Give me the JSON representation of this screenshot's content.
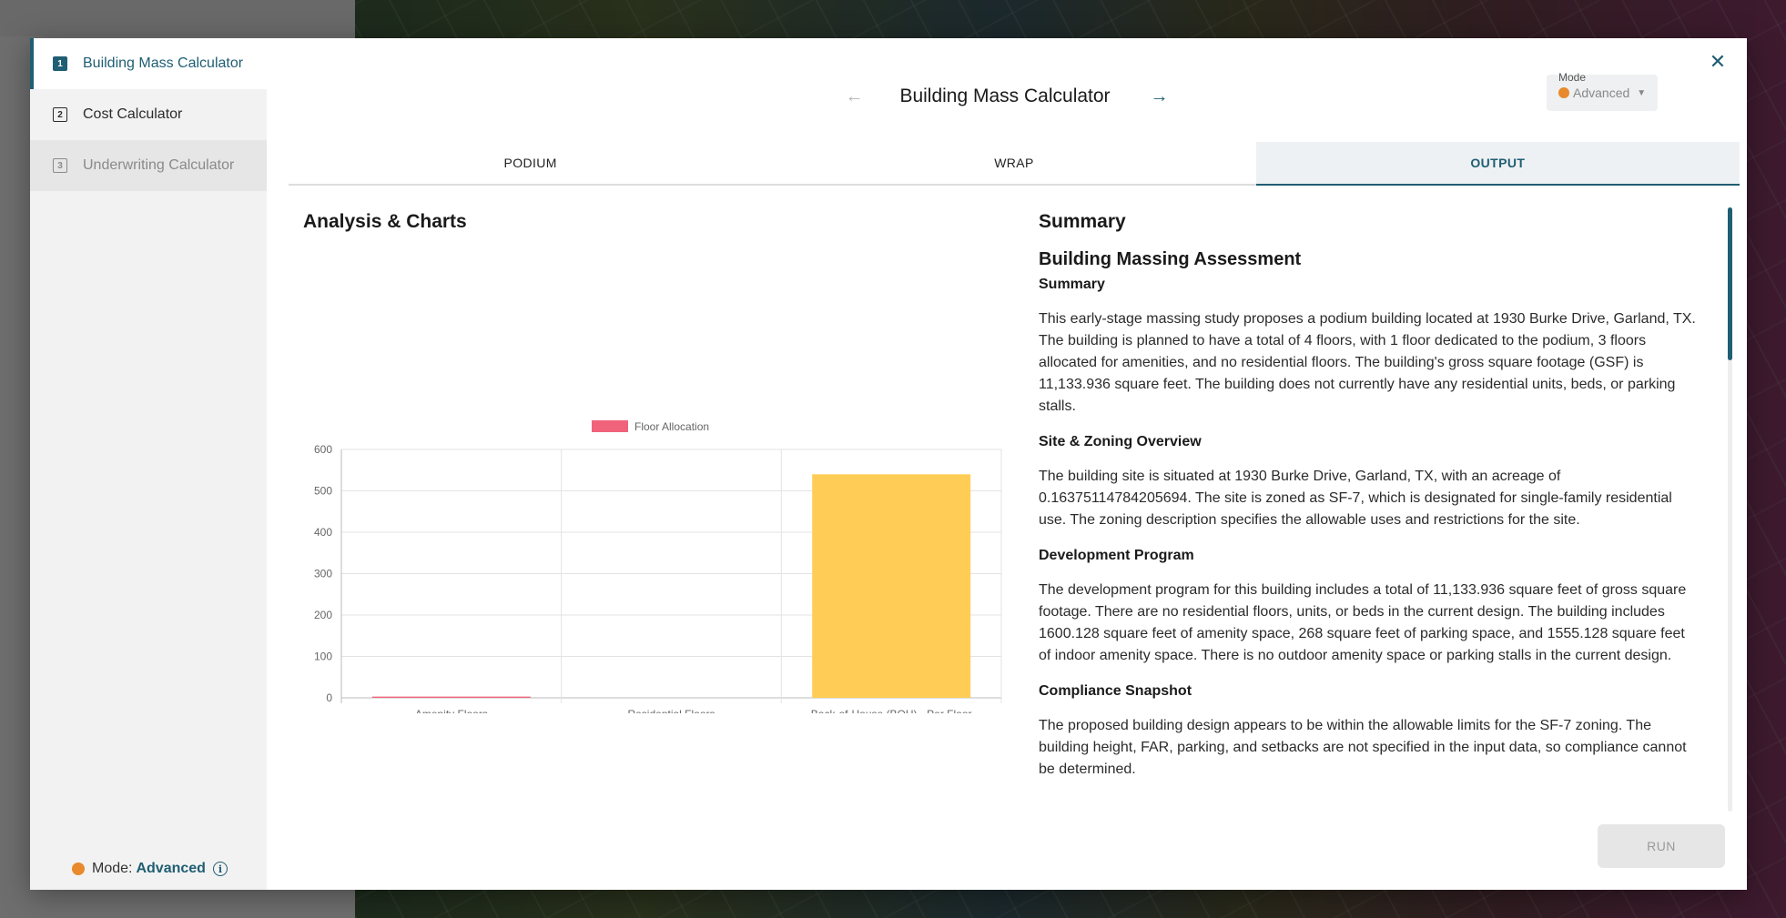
{
  "sidebar": {
    "items": [
      {
        "number": "1",
        "label": "Building Mass Calculator",
        "state": "active"
      },
      {
        "number": "2",
        "label": "Cost Calculator",
        "state": "normal"
      },
      {
        "number": "3",
        "label": "Underwriting Calculator",
        "state": "disabled"
      }
    ],
    "mode_label": "Mode:",
    "mode_value": "Advanced"
  },
  "header": {
    "title": "Building Mass Calculator",
    "mode_select": {
      "label": "Mode",
      "value": "Advanced"
    }
  },
  "tabs": [
    {
      "label": "PODIUM",
      "active": false
    },
    {
      "label": "WRAP",
      "active": false
    },
    {
      "label": "OUTPUT",
      "active": true
    }
  ],
  "left_panel": {
    "title": "Analysis & Charts"
  },
  "chart_data": {
    "type": "bar",
    "categories": [
      "Amenity Floors",
      "Residential Floors",
      "Back-of-House (BOH) - Per Floor"
    ],
    "series": [
      {
        "name": "Floor Allocation",
        "values": [
          3,
          0,
          540
        ],
        "colors": [
          "#f0637a",
          "#f0637a",
          "#ffcd56"
        ]
      }
    ],
    "ylim": [
      0,
      600
    ],
    "yticks": [
      "0",
      "100",
      "200",
      "300",
      "400",
      "500",
      "600"
    ],
    "legend_position": "top",
    "grid": true,
    "legend_color": "#f0637a"
  },
  "summary": {
    "section_title": "Summary",
    "heading": "Building Massing Assessment",
    "subheading": "Summary",
    "para1": "This early-stage massing study proposes a podium building located at 1930 Burke Drive, Garland, TX. The building is planned to have a total of 4 floors, with 1 floor dedicated to the podium, 3 floors allocated for amenities, and no residential floors. The building's gross square footage (GSF) is 11,133.936 square feet. The building does not currently have any residential units, beds, or parking stalls.",
    "site_heading": "Site & Zoning Overview",
    "para2": "The building site is situated at 1930 Burke Drive, Garland, TX, with an acreage of 0.16375114784205694. The site is zoned as SF-7, which is designated for single-family residential use. The zoning description specifies the allowable uses and restrictions for the site.",
    "dev_heading": "Development Program",
    "para3": "The development program for this building includes a total of 11,133.936 square feet of gross square footage. There are no residential floors, units, or beds in the current design. The building includes 1600.128 square feet of amenity space, 268 square feet of parking space, and 1555.128 square feet of indoor amenity space. There is no outdoor amenity space or parking stalls in the current design.",
    "compliance_heading": "Compliance Snapshot",
    "para4": "The proposed building design appears to be within the allowable limits for the SF-7 zoning. The building height, FAR, parking, and setbacks are not specified in the input data, so compliance cannot be determined."
  },
  "run_label": "RUN",
  "colors": {
    "accent": "#1f5e73",
    "mode_dot": "#e8892b"
  }
}
